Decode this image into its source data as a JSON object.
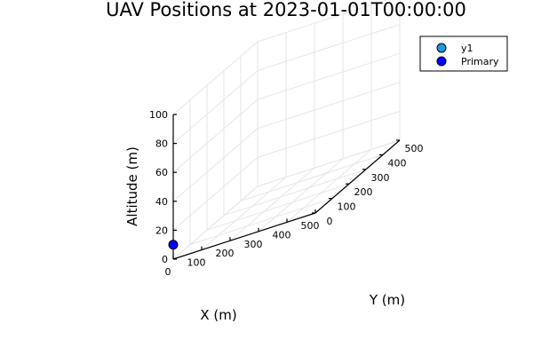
{
  "chart_data": {
    "type": "scatter",
    "title": "UAV Positions at 2023-01-01T00:00:00",
    "xlabel": "X (m)",
    "ylabel": "Y (m)",
    "zlabel": "Altitude (m)",
    "xlim": [
      0,
      500
    ],
    "ylim": [
      0,
      500
    ],
    "zlim": [
      0,
      100
    ],
    "xticks": [
      0,
      100,
      200,
      300,
      400,
      500
    ],
    "yticks": [
      0,
      100,
      200,
      300,
      400,
      500
    ],
    "zticks": [
      0,
      20,
      40,
      60,
      80,
      100
    ],
    "grid": true,
    "legend_position": "top-right",
    "series": [
      {
        "name": "y1",
        "color": "#1e9be0",
        "points": []
      },
      {
        "name": "Primary",
        "color": "#0000ff",
        "points": [
          {
            "x": 0,
            "y": 0,
            "z": 10
          }
        ]
      }
    ]
  }
}
